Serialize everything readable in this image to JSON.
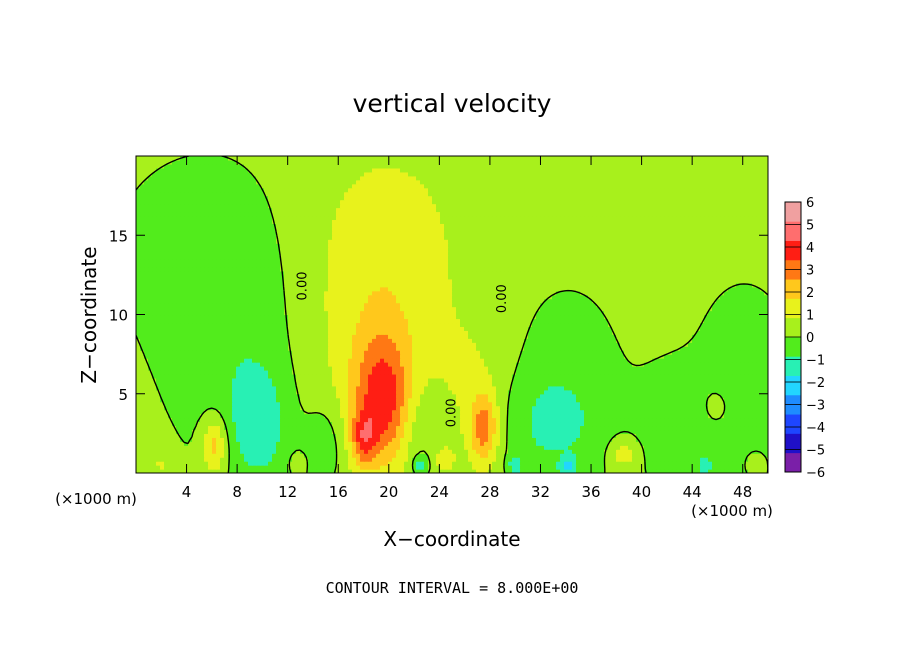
{
  "chart_data": {
    "type": "heatmap",
    "title": "vertical velocity",
    "xlabel": "X−coordinate",
    "ylabel": "Z−coordinate",
    "x_unit_left": "(×1000 m)",
    "x_unit_right": "(×1000 m)",
    "xlim": [
      0,
      50
    ],
    "ylim": [
      0,
      20
    ],
    "x_ticks": [
      4,
      8,
      12,
      16,
      20,
      24,
      28,
      32,
      36,
      40,
      44,
      48
    ],
    "x_tick_labels": [
      "4",
      "8",
      "12",
      "16",
      "20",
      "24",
      "28",
      "32",
      "36",
      "40",
      "44",
      "48"
    ],
    "y_ticks": [
      5,
      10,
      15
    ],
    "y_tick_labels": [
      "5",
      "10",
      "15"
    ],
    "colorbar": {
      "levels": [
        -6,
        -5,
        -4,
        -3,
        -2,
        -1,
        0,
        1,
        2,
        3,
        4,
        5,
        6
      ],
      "labels": [
        "−6",
        "−5",
        "−4",
        "−3",
        "−2",
        "−1",
        "0",
        "1",
        "2",
        "3",
        "4",
        "5",
        "6"
      ],
      "colors": [
        "#7a1fa8",
        "#1f10c8",
        "#1e46ff",
        "#1e8cff",
        "#22d6ff",
        "#28f0b4",
        "#52ec1c",
        "#a8f01c",
        "#e8f21c",
        "#ffc81c",
        "#ff7814",
        "#ff1e14",
        "#ff6e6e",
        "#f0a0a0"
      ]
    },
    "background_value": 0.3,
    "contour_level": 0.0,
    "contour_labels": [
      {
        "text": "0.00",
        "x": 13.2,
        "z": 11.8
      },
      {
        "text": "0.00",
        "x": 29.0,
        "z": 11.0
      },
      {
        "text": "0.00",
        "x": 25.0,
        "z": 3.8
      }
    ],
    "features": [
      {
        "x": 19.5,
        "z": 4.6,
        "sx": 1.6,
        "sz": 2.8,
        "amp": 3.6
      },
      {
        "x": 18.0,
        "z": 2.2,
        "sx": 0.7,
        "sz": 1.2,
        "amp": 2.6
      },
      {
        "x": 19.2,
        "z": 9.0,
        "sx": 3.8,
        "sz": 6.0,
        "amp": 1.3
      },
      {
        "x": 20.0,
        "z": 15.5,
        "sx": 5.0,
        "sz": 4.5,
        "amp": 0.6
      },
      {
        "x": 27.5,
        "z": 2.8,
        "sx": 0.8,
        "sz": 1.6,
        "amp": 3.2
      },
      {
        "x": 27.0,
        "z": 6.0,
        "sx": 2.2,
        "sz": 3.0,
        "amp": 0.7
      },
      {
        "x": 6.2,
        "z": 1.8,
        "sx": 0.7,
        "sz": 1.3,
        "amp": 2.4
      },
      {
        "x": 38.6,
        "z": 1.2,
        "sx": 0.8,
        "sz": 0.7,
        "amp": 1.4
      },
      {
        "x": 24.4,
        "z": 0.9,
        "sx": 0.6,
        "sz": 0.6,
        "amp": 1.2
      },
      {
        "x": 45.9,
        "z": 4.2,
        "sx": 1.0,
        "sz": 1.0,
        "amp": 0.7
      },
      {
        "x": 9.8,
        "z": 3.0,
        "sx": 1.6,
        "sz": 2.6,
        "amp": -1.7
      },
      {
        "x": 7.5,
        "z": 7.0,
        "sx": 3.5,
        "sz": 5.0,
        "amp": -0.8
      },
      {
        "x": 5.5,
        "z": 14.0,
        "sx": 6.0,
        "sz": 5.0,
        "amp": -0.6
      },
      {
        "x": 15.0,
        "z": 1.8,
        "sx": 1.2,
        "sz": 2.0,
        "amp": -1.1
      },
      {
        "x": 22.5,
        "z": 2.8,
        "sx": 1.2,
        "sz": 2.4,
        "amp": -1.0
      },
      {
        "x": 33.0,
        "z": 3.0,
        "sx": 3.0,
        "sz": 2.6,
        "amp": -1.4
      },
      {
        "x": 34.0,
        "z": 7.5,
        "sx": 3.5,
        "sz": 4.0,
        "amp": -0.5
      },
      {
        "x": 42.5,
        "z": 3.0,
        "sx": 2.0,
        "sz": 2.5,
        "amp": -1.0
      },
      {
        "x": 48.5,
        "z": 4.0,
        "sx": 2.5,
        "sz": 3.5,
        "amp": -0.7
      },
      {
        "x": 48.0,
        "z": 8.0,
        "sx": 3.0,
        "sz": 4.0,
        "amp": -0.4
      },
      {
        "x": 34.0,
        "z": 0.5,
        "sx": 0.5,
        "sz": 0.4,
        "amp": -2.2
      },
      {
        "x": 22.5,
        "z": 0.5,
        "sx": 0.4,
        "sz": 0.4,
        "amp": -1.8
      },
      {
        "x": 30.0,
        "z": 0.5,
        "sx": 0.4,
        "sz": 0.4,
        "amp": -1.6
      },
      {
        "x": 45.0,
        "z": 0.5,
        "sx": 0.4,
        "sz": 0.4,
        "amp": -1.6
      },
      {
        "x": 2.0,
        "z": 0.6,
        "sx": 0.5,
        "sz": 0.4,
        "amp": 1.0
      },
      {
        "x": 12.8,
        "z": 0.7,
        "sx": 0.4,
        "sz": 0.4,
        "amp": 0.8
      },
      {
        "x": 33.6,
        "z": 0.7,
        "sx": 0.4,
        "sz": 0.4,
        "amp": 0.7
      },
      {
        "x": 49.0,
        "z": 0.7,
        "sx": 0.5,
        "sz": 0.5,
        "amp": 0.8
      }
    ],
    "grid": false,
    "legend": "colorbar-right"
  },
  "footer": {
    "contour_interval": "CONTOUR INTERVAL = 8.000E+00"
  }
}
